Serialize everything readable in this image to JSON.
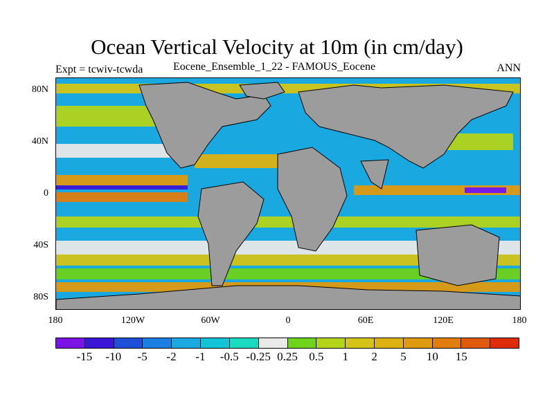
{
  "title": "Ocean Vertical Velocity at 10m (in cm/day)",
  "left_subtitle": "Expt = tcwiv-tcwda",
  "center_subtitle": "Eocene_Ensemble_1_22 - FAMOUS_Eocene",
  "right_subtitle": "ANN",
  "map": {
    "land_color": "#9c9c9c",
    "ocean_base_color": "#1aa8e0",
    "lat_labels": [
      "80N",
      "40N",
      "0",
      "40S",
      "80S"
    ],
    "lon_labels": [
      "180",
      "120W",
      "60W",
      "0",
      "60E",
      "120E",
      "180"
    ]
  },
  "colorbar": {
    "colors": [
      "#7b13e6",
      "#3a17d6",
      "#1e4fd9",
      "#1a7fe0",
      "#1aa8e0",
      "#12c4d6",
      "#19d9c0",
      "#e9e9e9",
      "#6fd21b",
      "#b3d41a",
      "#d3c417",
      "#dcb213",
      "#e09a10",
      "#e07d0e",
      "#e05a0d",
      "#de2c0b"
    ],
    "labels": [
      "-15",
      "-10",
      "-5",
      "-2",
      "-1",
      "-0.5",
      "-0.25",
      "0.25",
      "0.5",
      "1",
      "2",
      "5",
      "10",
      "15"
    ]
  }
}
